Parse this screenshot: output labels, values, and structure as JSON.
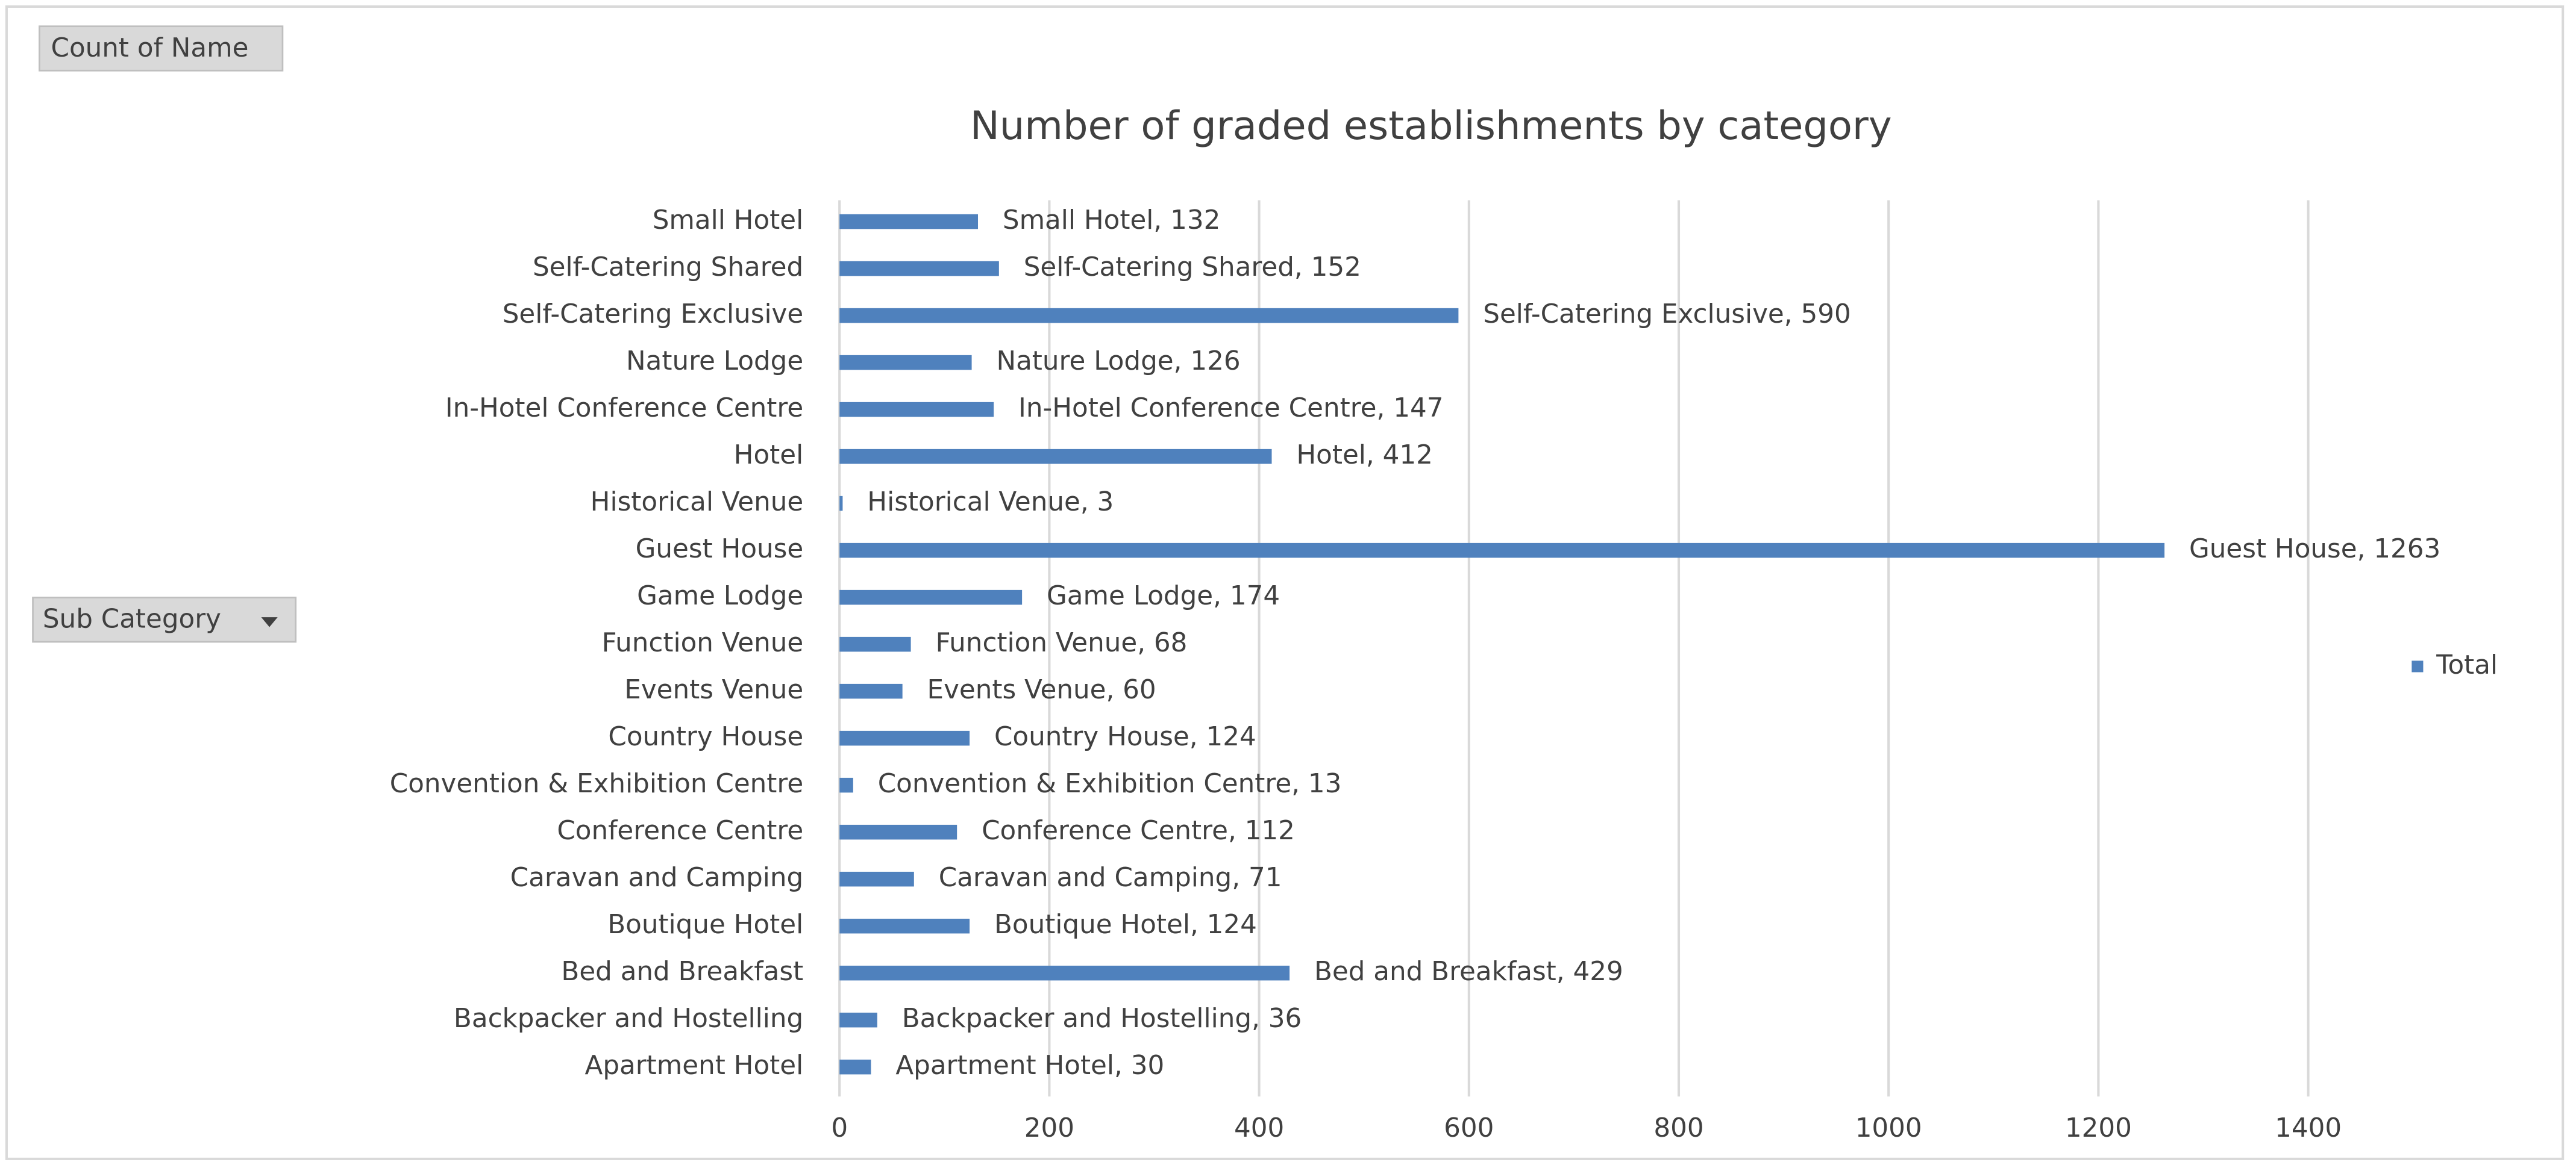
{
  "field_buttons": {
    "values": "Count of Name",
    "rows": "Sub Category"
  },
  "chart_data": {
    "type": "bar",
    "orientation": "horizontal",
    "title": "Number of graded establishments by category",
    "categories": [
      "Small Hotel",
      "Self-Catering Shared",
      "Self-Catering Exclusive",
      "Nature Lodge",
      "In-Hotel Conference Centre",
      "Hotel",
      "Historical Venue",
      "Guest House",
      "Game Lodge",
      "Function Venue",
      "Events Venue",
      "Country House",
      "Convention & Exhibition Centre",
      "Conference Centre",
      "Caravan and Camping",
      "Boutique Hotel",
      "Bed and Breakfast",
      "Backpacker and Hostelling",
      "Apartment Hotel"
    ],
    "series": [
      {
        "name": "Total",
        "color": "#4f81bd",
        "values": [
          132,
          152,
          590,
          126,
          147,
          412,
          3,
          1263,
          174,
          68,
          60,
          124,
          13,
          112,
          71,
          124,
          429,
          36,
          30
        ],
        "value_labels": [
          "Small Hotel, 132",
          "Self-Catering Shared, 152",
          "Self-Catering Exclusive, 590",
          "Nature Lodge, 126",
          "In-Hotel Conference Centre, 147",
          "Hotel, 412",
          "Historical Venue, 3",
          "Guest House, 1263",
          "Game Lodge, 174",
          "Function Venue, 68",
          "Events Venue, 60",
          "Country House, 124",
          "Convention & Exhibition Centre, 13",
          "Conference Centre, 112",
          "Caravan and Camping, 71",
          "Boutique Hotel, 124",
          "Bed and Breakfast, 429",
          "Backpacker and Hostelling, 36",
          "Apartment Hotel, 30"
        ]
      }
    ],
    "xlim": [
      0,
      1400
    ],
    "xticks": [
      0,
      200,
      400,
      600,
      800,
      1000,
      1200,
      1400
    ],
    "grid": true,
    "legend": "right"
  }
}
